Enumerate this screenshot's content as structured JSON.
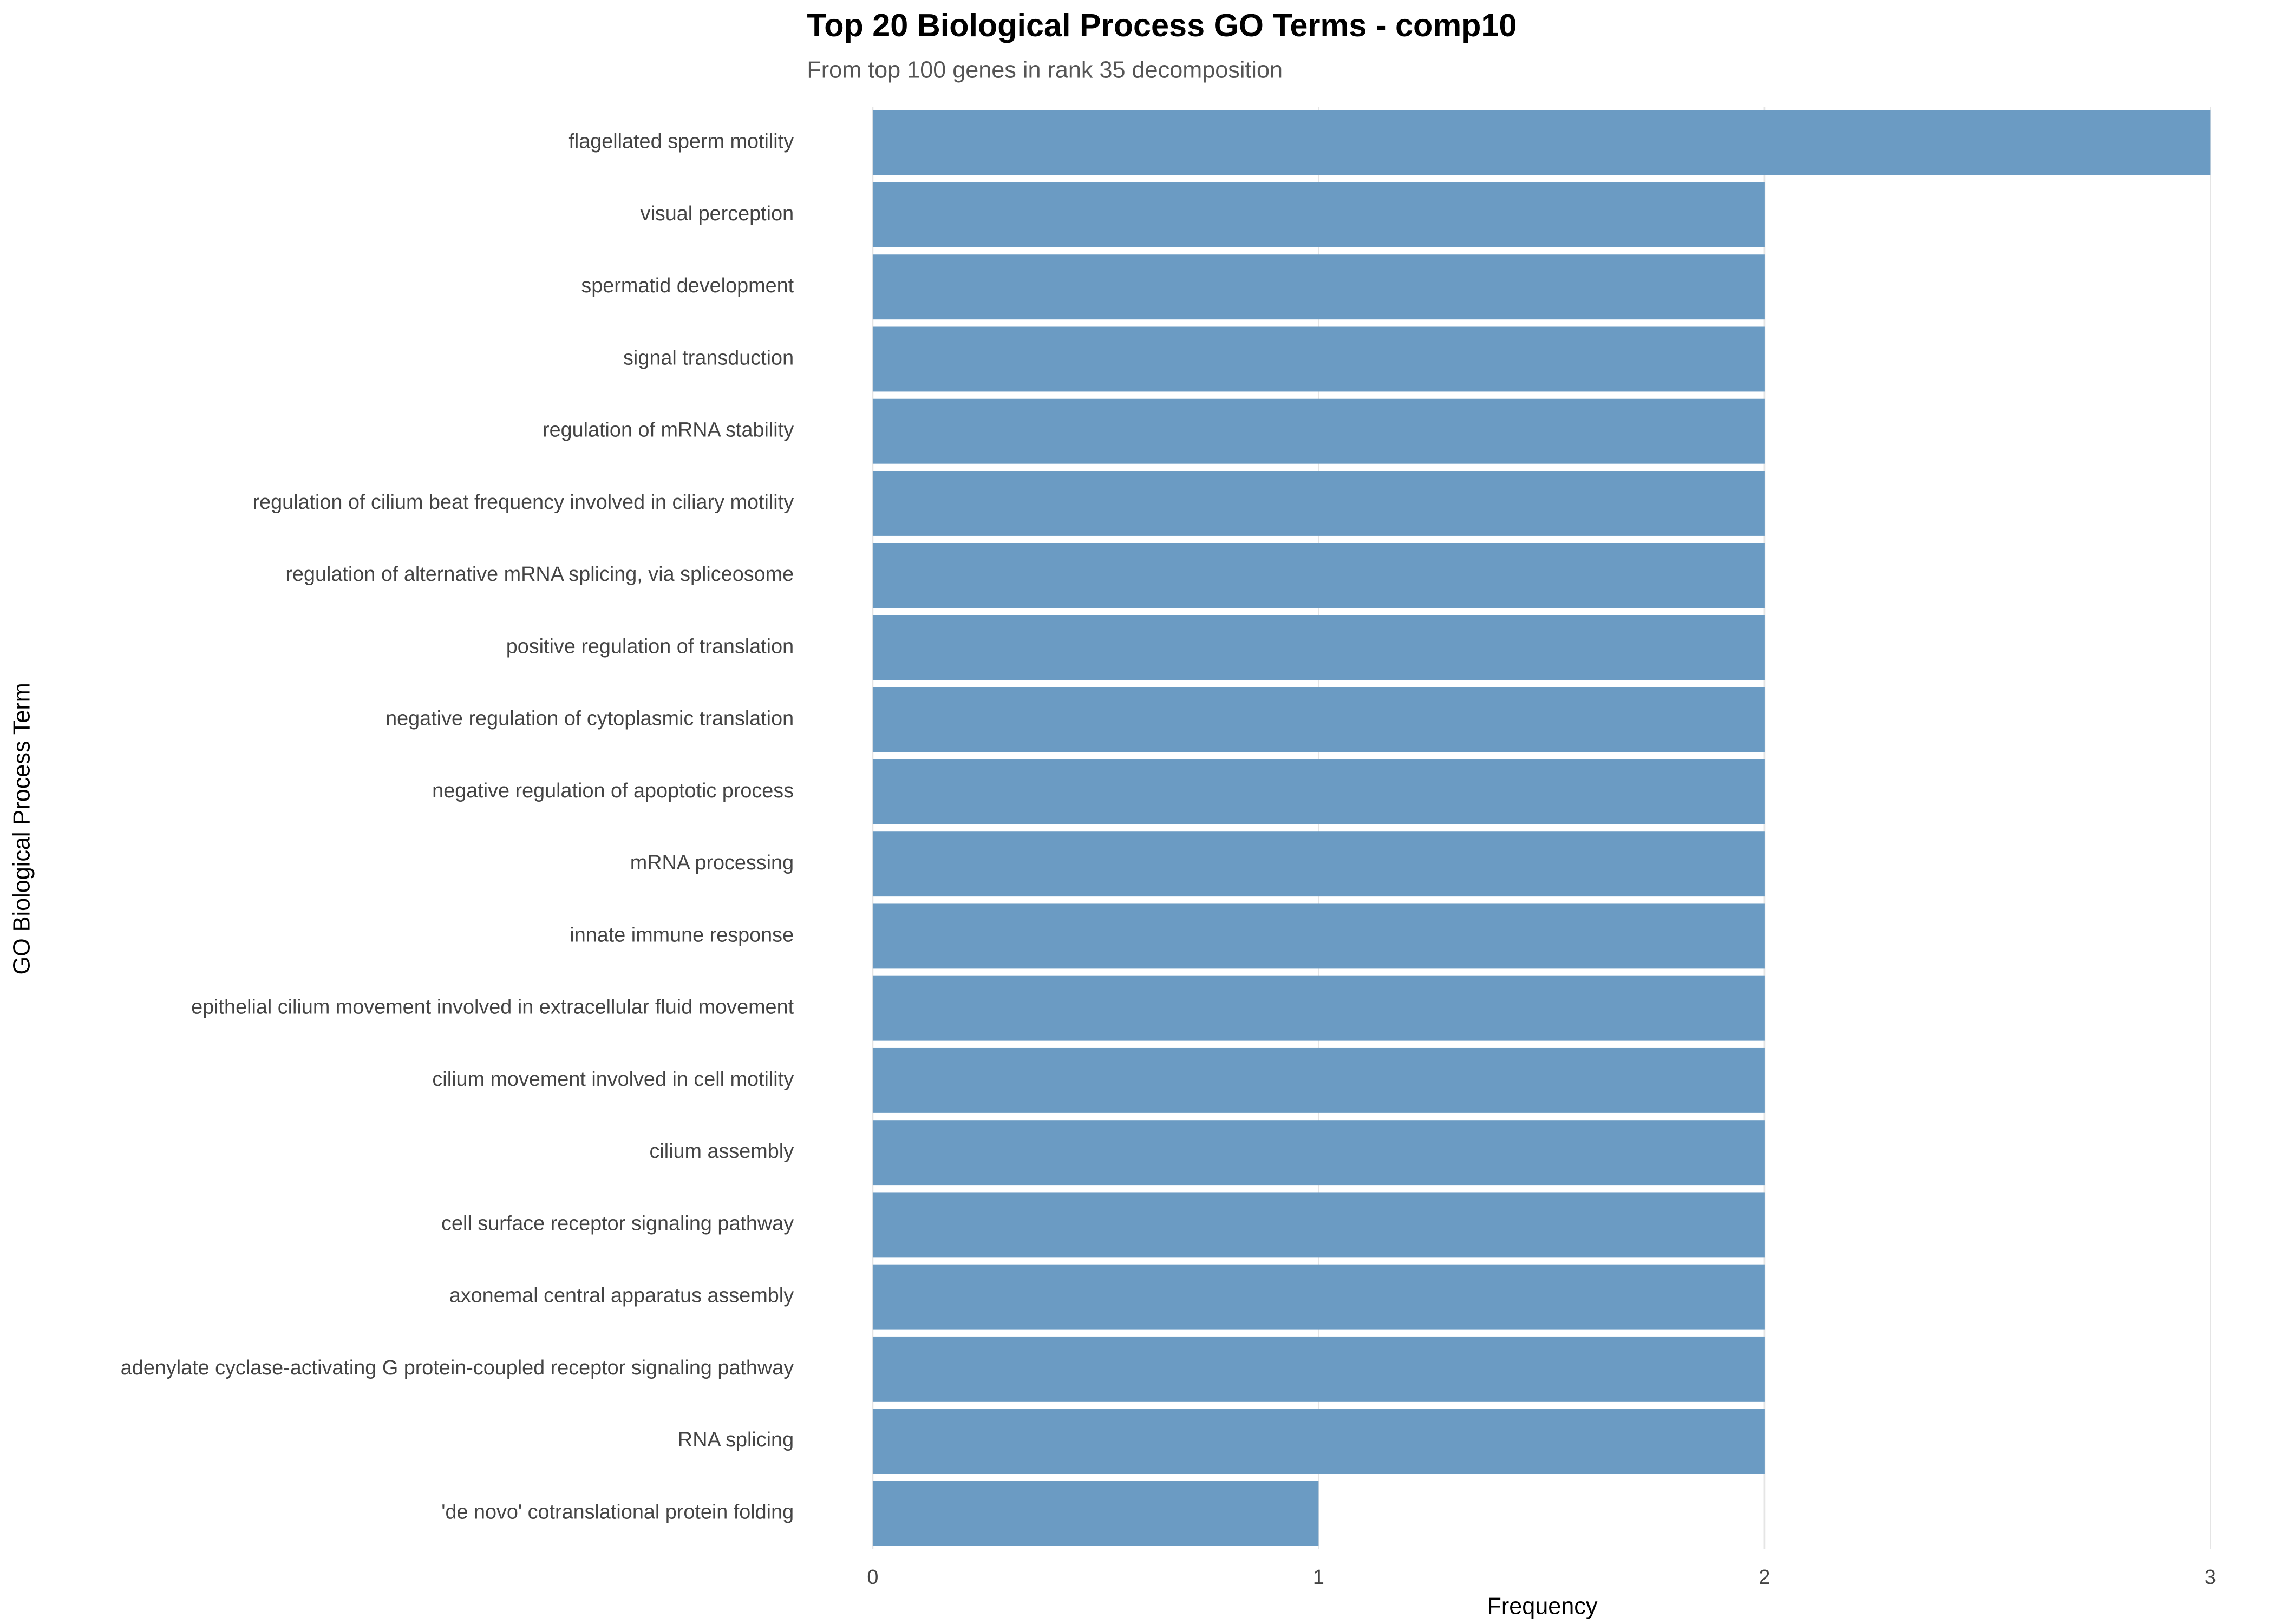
{
  "chart_data": {
    "type": "bar",
    "orientation": "horizontal",
    "title": "Top 20 Biological Process GO Terms - comp10",
    "subtitle": "From top 100 genes in rank 35 decomposition",
    "x_label": "Frequency",
    "y_label": "GO Biological Process Term",
    "categories": [
      "flagellated sperm motility",
      "visual perception",
      "spermatid development",
      "signal transduction",
      "regulation of mRNA stability",
      "regulation of cilium beat frequency involved in ciliary motility",
      "regulation of alternative mRNA splicing, via spliceosome",
      "positive regulation of translation",
      "negative regulation of cytoplasmic translation",
      "negative regulation of apoptotic process",
      "mRNA processing",
      "innate immune response",
      "epithelial cilium movement involved in extracellular fluid movement",
      "cilium movement involved in cell motility",
      "cilium assembly",
      "cell surface receptor signaling pathway",
      "axonemal central apparatus assembly",
      "adenylate cyclase-activating G protein-coupled receptor signaling pathway",
      "RNA splicing",
      "'de novo' cotranslational protein folding"
    ],
    "values": [
      3,
      2,
      2,
      2,
      2,
      2,
      2,
      2,
      2,
      2,
      2,
      2,
      2,
      2,
      2,
      2,
      2,
      2,
      2,
      1
    ],
    "color": "#6b9bc3",
    "xlim": [
      0,
      3
    ],
    "xticks": [
      0,
      1,
      2,
      3
    ],
    "grid": true
  }
}
